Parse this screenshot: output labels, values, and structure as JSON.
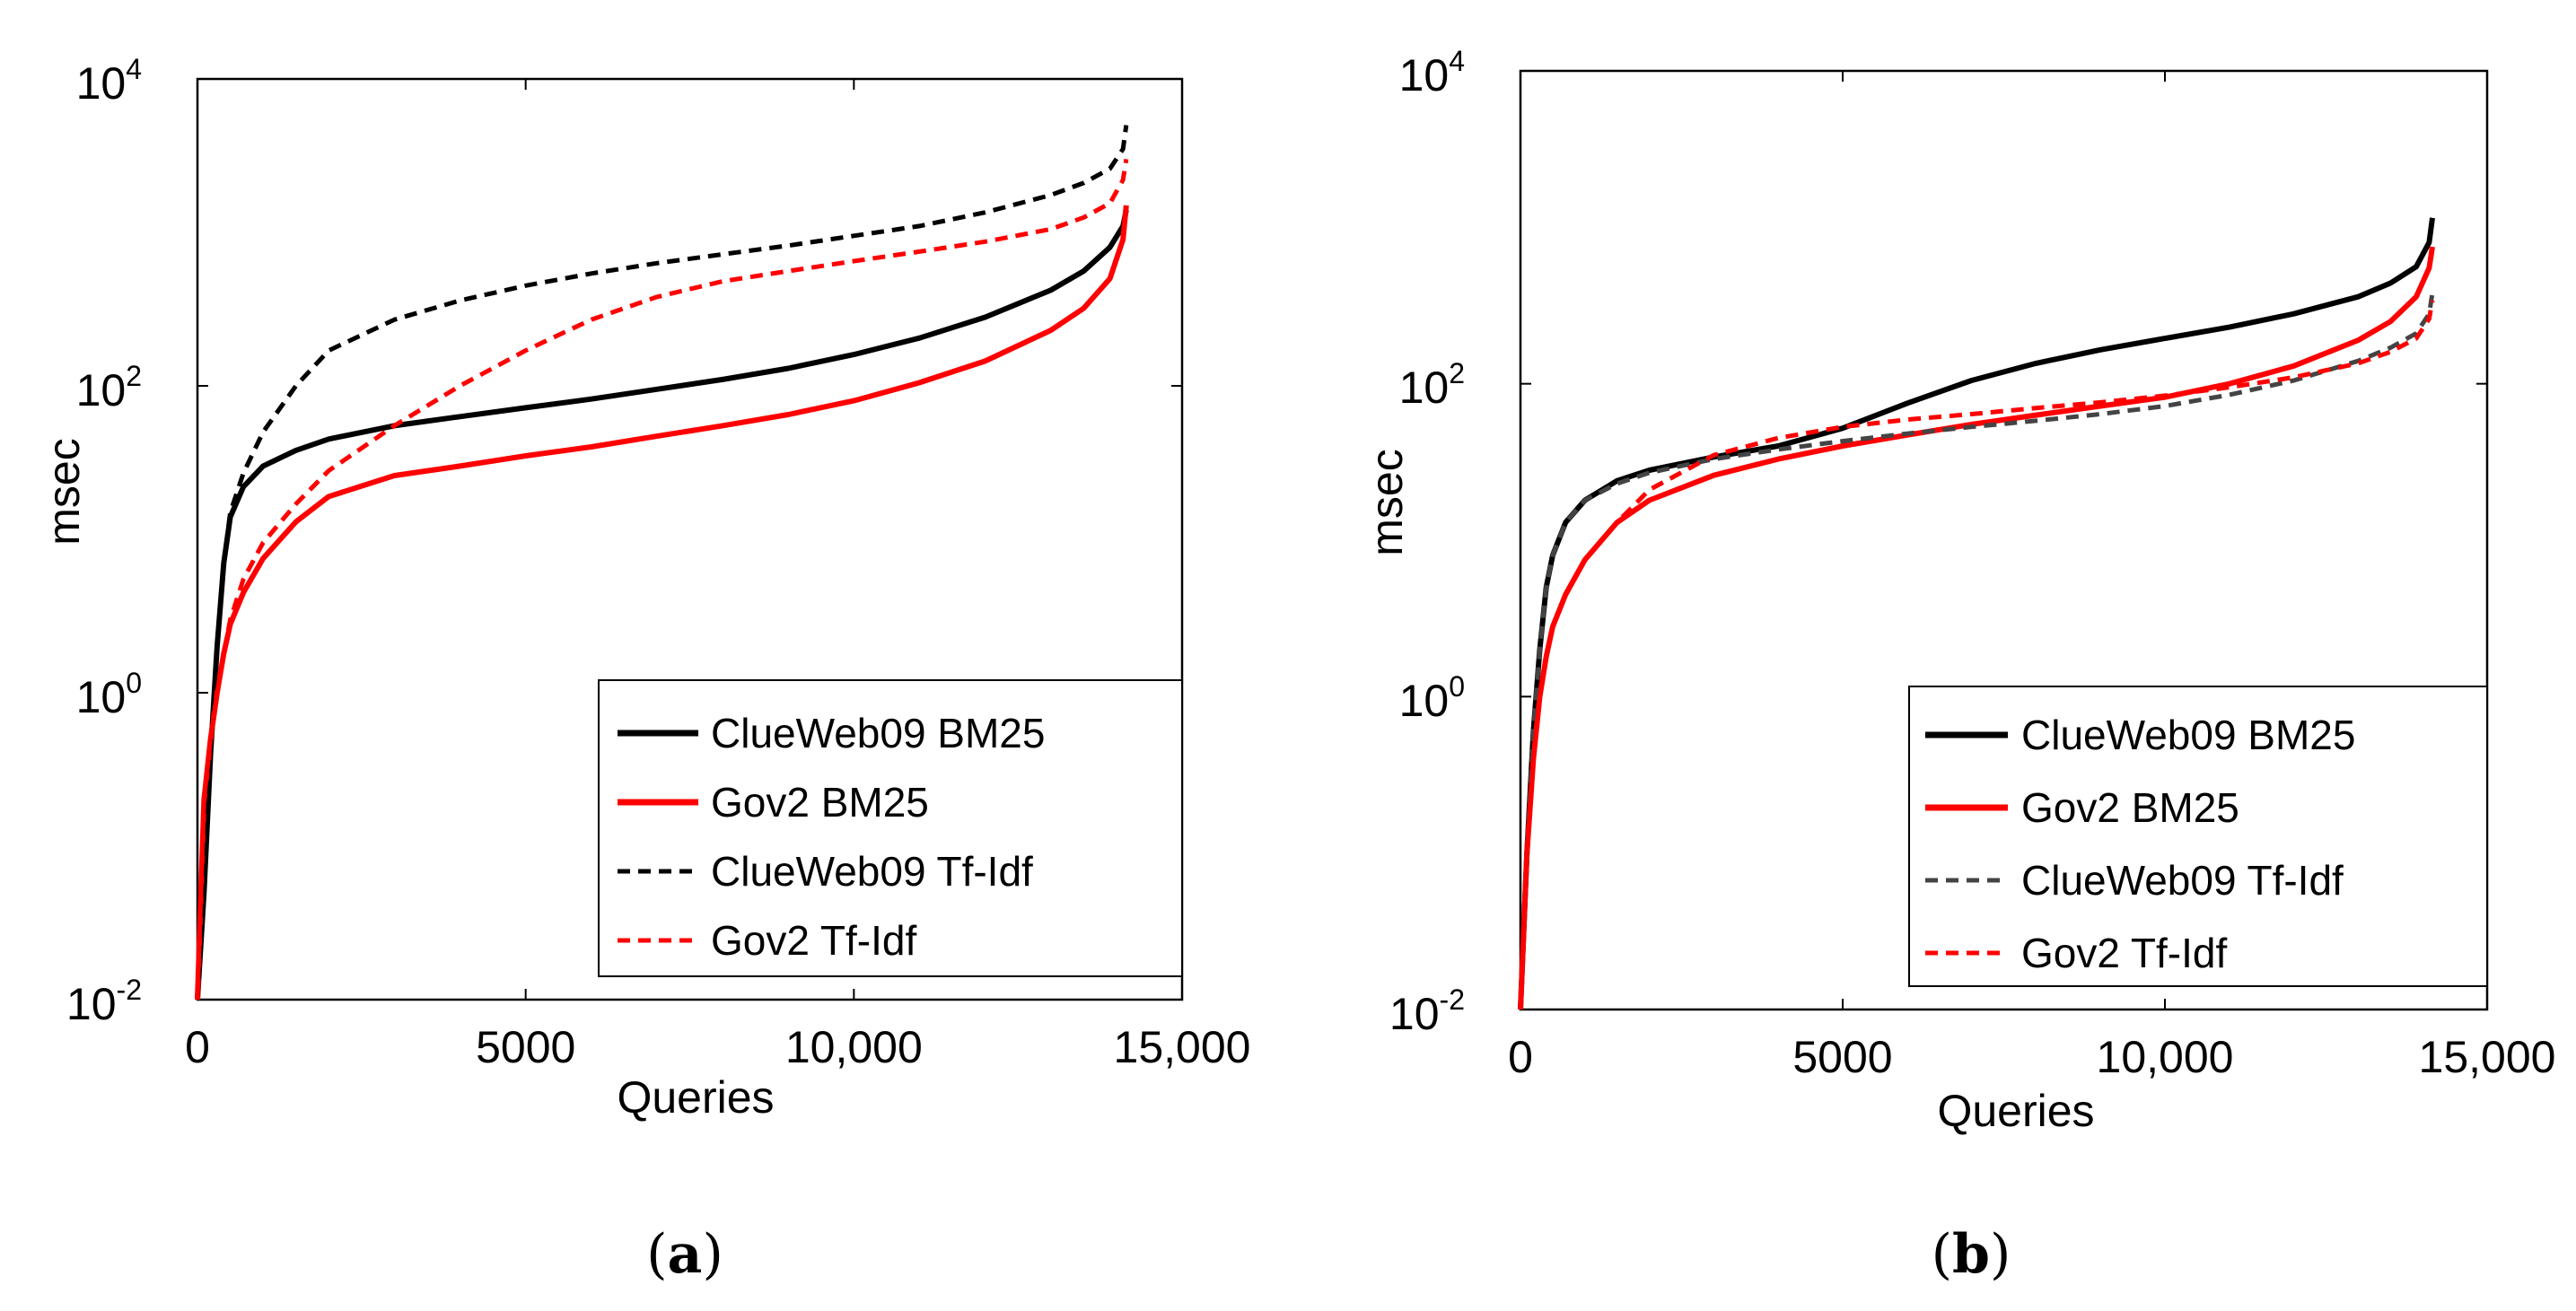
{
  "chart_data": [
    {
      "type": "line",
      "panel": "a",
      "caption_open": "(",
      "caption_letter": "a",
      "caption_close": ")",
      "xlabel": "Queries",
      "ylabel": "msec",
      "y_scale": "log",
      "xlim": [
        0,
        15000
      ],
      "ylim": [
        0.01,
        10000
      ],
      "x_tick_labels": [
        "0",
        "5000",
        "10,000",
        "15,000"
      ],
      "x_tick_values": [
        0,
        5000,
        10000,
        15000
      ],
      "y_ticks": [
        {
          "value": 0.01,
          "base": "10",
          "exp": "-2"
        },
        {
          "value": 1,
          "base": "10",
          "exp": "0"
        },
        {
          "value": 100,
          "base": "10",
          "exp": "2"
        },
        {
          "value": 10000,
          "base": "10",
          "exp": "4"
        }
      ],
      "grid": false,
      "legend_position": "bottom-right",
      "series": [
        {
          "name": "ClueWeb09 BM25",
          "color": "#000000",
          "style": "solid",
          "x": [
            0,
            100,
            200,
            300,
            400,
            500,
            700,
            1000,
            1500,
            2000,
            3000,
            4000,
            5000,
            6000,
            7000,
            8000,
            9000,
            10000,
            11000,
            12000,
            13000,
            13500,
            13900,
            14100,
            14150
          ],
          "y": [
            0.01,
            0.05,
            0.4,
            2,
            7,
            14,
            22,
            30,
            38,
            45,
            55,
            63,
            72,
            82,
            95,
            110,
            130,
            160,
            205,
            280,
            420,
            560,
            800,
            1100,
            1400
          ]
        },
        {
          "name": "Gov2 BM25",
          "color": "#ff0000",
          "style": "solid",
          "x": [
            0,
            100,
            200,
            300,
            400,
            500,
            700,
            1000,
            1500,
            2000,
            3000,
            4000,
            5000,
            6000,
            7000,
            8000,
            9000,
            10000,
            11000,
            12000,
            13000,
            13500,
            13900,
            14100,
            14150
          ],
          "y": [
            0.01,
            0.2,
            0.5,
            1,
            1.8,
            2.8,
            4.5,
            7.5,
            13,
            19,
            26,
            30,
            35,
            40,
            47,
            55,
            65,
            80,
            105,
            145,
            230,
            320,
            500,
            900,
            1500
          ]
        },
        {
          "name": "ClueWeb09 Tf-Idf",
          "color": "#000000",
          "style": "dashed",
          "x": [
            0,
            100,
            200,
            300,
            400,
            500,
            700,
            1000,
            1500,
            2000,
            3000,
            4000,
            5000,
            6000,
            7000,
            8000,
            9000,
            10000,
            11000,
            12000,
            13000,
            13500,
            13900,
            14100,
            14150
          ],
          "y": [
            0.01,
            0.05,
            0.4,
            2,
            7,
            15,
            27,
            50,
            100,
            170,
            270,
            360,
            450,
            540,
            630,
            720,
            820,
            950,
            1100,
            1350,
            1750,
            2100,
            2600,
            3500,
            5000
          ]
        },
        {
          "name": "Gov2 Tf-Idf",
          "color": "#ff0000",
          "style": "dashed",
          "x": [
            0,
            100,
            200,
            300,
            400,
            500,
            700,
            1000,
            1500,
            2000,
            3000,
            4000,
            5000,
            6000,
            7000,
            8000,
            9000,
            10000,
            11000,
            12000,
            13000,
            13500,
            13900,
            14100,
            14150
          ],
          "y": [
            0.01,
            0.2,
            0.5,
            1,
            1.8,
            3,
            5.5,
            9.5,
            17,
            28,
            55,
            100,
            170,
            270,
            380,
            480,
            560,
            650,
            750,
            870,
            1050,
            1250,
            1550,
            2200,
            3000
          ]
        }
      ]
    },
    {
      "type": "line",
      "panel": "b",
      "caption_open": "(",
      "caption_letter": "b",
      "caption_close": ")",
      "xlabel": "Queries",
      "ylabel": "msec",
      "y_scale": "log",
      "xlim": [
        0,
        15000
      ],
      "ylim": [
        0.01,
        10000
      ],
      "x_tick_labels": [
        "0",
        "5000",
        "10,000",
        "15,000"
      ],
      "x_tick_values": [
        0,
        5000,
        10000,
        15000
      ],
      "y_ticks": [
        {
          "value": 0.01,
          "base": "10",
          "exp": "-2"
        },
        {
          "value": 1,
          "base": "10",
          "exp": "0"
        },
        {
          "value": 100,
          "base": "10",
          "exp": "2"
        },
        {
          "value": 10000,
          "base": "10",
          "exp": "4"
        }
      ],
      "grid": false,
      "legend_position": "bottom-right",
      "series": [
        {
          "name": "ClueWeb09 BM25",
          "color": "#000000",
          "style": "solid",
          "x": [
            0,
            100,
            200,
            300,
            400,
            500,
            700,
            1000,
            1500,
            2000,
            3000,
            4000,
            5000,
            6000,
            7000,
            8000,
            9000,
            10000,
            11000,
            12000,
            13000,
            13500,
            13900,
            14100,
            14150
          ],
          "y": [
            0.01,
            0.1,
            0.6,
            2,
            5,
            8,
            13,
            18,
            24,
            28,
            34,
            40,
            52,
            75,
            105,
            135,
            165,
            195,
            230,
            280,
            360,
            440,
            560,
            800,
            1150
          ]
        },
        {
          "name": "Gov2 BM25",
          "color": "#ff0000",
          "style": "solid",
          "x": [
            0,
            100,
            200,
            300,
            400,
            500,
            700,
            1000,
            1500,
            2000,
            3000,
            4000,
            5000,
            6000,
            7000,
            8000,
            9000,
            10000,
            11000,
            12000,
            13000,
            13500,
            13900,
            14100,
            14150
          ],
          "y": [
            0.01,
            0.1,
            0.4,
            1,
            1.8,
            2.8,
            4.5,
            7.5,
            13,
            18,
            26,
            33,
            40,
            47,
            55,
            63,
            72,
            82,
            100,
            130,
            190,
            250,
            360,
            550,
            750
          ]
        },
        {
          "name": "ClueWeb09 Tf-Idf",
          "color": "#444444",
          "style": "dashed",
          "x": [
            0,
            100,
            200,
            300,
            400,
            500,
            700,
            1000,
            1500,
            2000,
            3000,
            4000,
            5000,
            6000,
            7000,
            8000,
            9000,
            10000,
            11000,
            12000,
            13000,
            13500,
            13900,
            14100,
            14150
          ],
          "y": [
            0.01,
            0.1,
            0.6,
            2,
            5,
            8,
            13,
            18,
            23,
            27,
            33,
            38,
            43,
            48,
            53,
            58,
            64,
            72,
            85,
            105,
            140,
            170,
            210,
            280,
            380
          ]
        },
        {
          "name": "Gov2 Tf-Idf",
          "color": "#ff0000",
          "style": "dashed",
          "x": [
            0,
            100,
            200,
            300,
            400,
            500,
            700,
            1000,
            1500,
            2000,
            3000,
            4000,
            5000,
            6000,
            7000,
            8000,
            9000,
            10000,
            11000,
            12000,
            13000,
            13500,
            13900,
            14100,
            14150
          ],
          "y": [
            0.01,
            0.1,
            0.4,
            1,
            1.8,
            2.8,
            4.5,
            7.5,
            13,
            21,
            35,
            45,
            53,
            59,
            64,
            70,
            76,
            84,
            95,
            110,
            135,
            160,
            195,
            260,
            340
          ]
        }
      ]
    }
  ]
}
